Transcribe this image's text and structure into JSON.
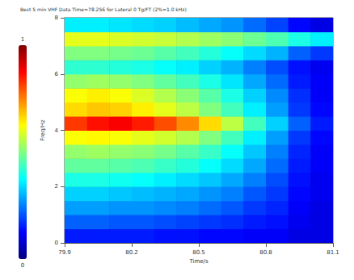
{
  "chart_data": {
    "type": "heatmap",
    "title": "Best 5 min VHF Data Time=78.256 for Lateral 0 Tg/FT (2%=1.0 kHz)",
    "x_label": "Time/s",
    "y_label": "Freq/Hz",
    "xlim": [
      79.9,
      81.1
    ],
    "xticks": [
      79.9,
      80.2,
      80.5,
      80.8,
      81.1
    ],
    "ylim": [
      0,
      8
    ],
    "yticks": [
      0,
      2,
      4,
      6,
      8
    ],
    "grid": false,
    "x_bins": [
      79.9,
      80.0,
      80.1,
      80.2,
      80.3,
      80.4,
      80.5,
      80.6,
      80.7,
      80.8,
      80.9,
      81.0,
      81.1
    ],
    "y_bins": [
      0,
      0.5,
      1,
      1.5,
      2,
      2.5,
      3,
      3.5,
      4,
      4.5,
      5,
      5.5,
      6,
      6.5,
      7,
      7.5,
      8
    ],
    "cells": [
      [
        0.15,
        0.15,
        0.15,
        0.15,
        0.14,
        0.14,
        0.13,
        0.13,
        0.12,
        0.12,
        0.1,
        0.1
      ],
      [
        0.22,
        0.22,
        0.21,
        0.21,
        0.2,
        0.19,
        0.18,
        0.17,
        0.15,
        0.14,
        0.11,
        0.1
      ],
      [
        0.28,
        0.28,
        0.27,
        0.27,
        0.26,
        0.25,
        0.23,
        0.21,
        0.18,
        0.16,
        0.12,
        0.1
      ],
      [
        0.33,
        0.33,
        0.32,
        0.31,
        0.3,
        0.29,
        0.27,
        0.25,
        0.21,
        0.18,
        0.13,
        0.11
      ],
      [
        0.4,
        0.4,
        0.39,
        0.38,
        0.36,
        0.34,
        0.32,
        0.29,
        0.25,
        0.2,
        0.14,
        0.11
      ],
      [
        0.47,
        0.47,
        0.46,
        0.45,
        0.43,
        0.41,
        0.38,
        0.34,
        0.29,
        0.23,
        0.15,
        0.12
      ],
      [
        0.52,
        0.53,
        0.52,
        0.51,
        0.49,
        0.46,
        0.43,
        0.38,
        0.32,
        0.25,
        0.16,
        0.12
      ],
      [
        0.62,
        0.63,
        0.62,
        0.6,
        0.58,
        0.55,
        0.5,
        0.44,
        0.36,
        0.28,
        0.18,
        0.13
      ],
      [
        0.82,
        0.86,
        0.88,
        0.85,
        0.8,
        0.74,
        0.66,
        0.56,
        0.44,
        0.33,
        0.22,
        0.15
      ],
      [
        0.66,
        0.68,
        0.67,
        0.64,
        0.6,
        0.56,
        0.5,
        0.44,
        0.36,
        0.28,
        0.18,
        0.13
      ],
      [
        0.62,
        0.64,
        0.62,
        0.59,
        0.55,
        0.51,
        0.46,
        0.4,
        0.33,
        0.26,
        0.17,
        0.12
      ],
      [
        0.52,
        0.53,
        0.52,
        0.5,
        0.47,
        0.44,
        0.4,
        0.35,
        0.29,
        0.23,
        0.15,
        0.12
      ],
      [
        0.42,
        0.42,
        0.41,
        0.4,
        0.38,
        0.36,
        0.33,
        0.3,
        0.25,
        0.2,
        0.14,
        0.11
      ],
      [
        0.5,
        0.5,
        0.49,
        0.48,
        0.46,
        0.44,
        0.41,
        0.38,
        0.34,
        0.3,
        0.22,
        0.18
      ],
      [
        0.6,
        0.6,
        0.59,
        0.58,
        0.57,
        0.55,
        0.53,
        0.51,
        0.48,
        0.45,
        0.4,
        0.36
      ],
      [
        0.36,
        0.36,
        0.35,
        0.34,
        0.33,
        0.31,
        0.29,
        0.27,
        0.23,
        0.19,
        0.13,
        0.1
      ]
    ],
    "colorbar": {
      "range": [
        0,
        1
      ],
      "ticks": [
        0,
        1
      ]
    }
  }
}
